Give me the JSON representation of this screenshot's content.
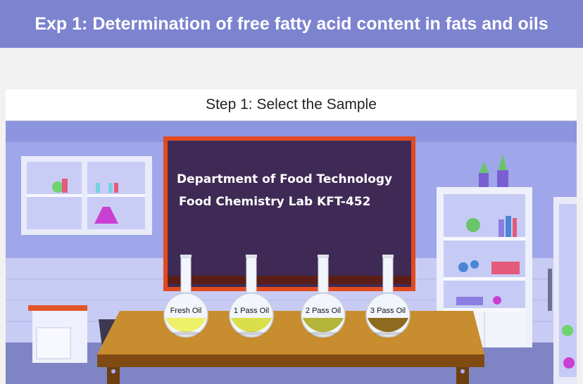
{
  "header": {
    "title": "Exp 1: Determination of free fatty acid content in fats and oils"
  },
  "step": {
    "title": "Step 1: Select the Sample"
  },
  "board": {
    "line1": "Department of Food Technology",
    "line2": "Food Chemistry Lab  KFT-452"
  },
  "samples": [
    {
      "label": "Fresh Oil",
      "color": "#eef06a"
    },
    {
      "label": "1 Pass Oil",
      "color": "#d9df4a"
    },
    {
      "label": "2 Pass Oil",
      "color": "#b4b43a"
    },
    {
      "label": "3 Pass Oil",
      "color": "#8d6a1d"
    }
  ]
}
